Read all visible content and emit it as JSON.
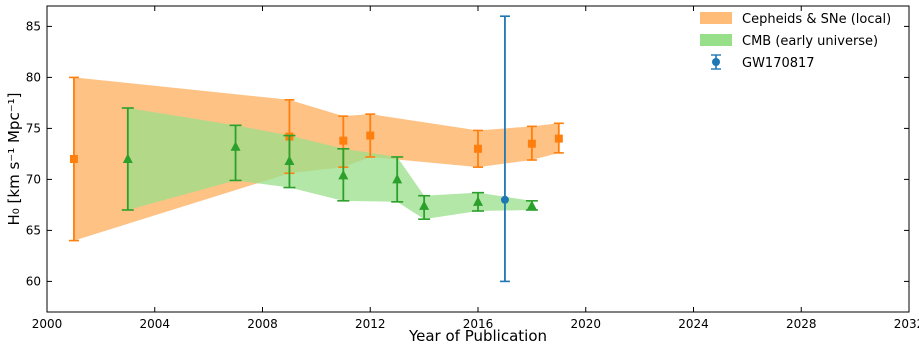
{
  "chart_data": {
    "type": "scatter",
    "xlabel": "Year of Publication",
    "ylabel": "H₀ [km s⁻¹ Mpc⁻¹]",
    "xlim": [
      2000,
      2032
    ],
    "ylim": [
      57,
      87
    ],
    "xticks": [
      2000,
      2004,
      2008,
      2012,
      2016,
      2020,
      2024,
      2028,
      2032
    ],
    "yticks": [
      60,
      65,
      70,
      75,
      80,
      85
    ],
    "legend_position": "top-right",
    "grid": false,
    "bands": [
      {
        "name": "Cepheids & SNe (local)",
        "color": "#ffbb78",
        "x": [
          2001,
          2009,
          2011,
          2012,
          2016,
          2018,
          2019
        ],
        "upper": [
          80.0,
          77.8,
          76.2,
          76.4,
          74.8,
          75.2,
          75.5
        ],
        "lower": [
          64.0,
          70.6,
          71.2,
          72.2,
          71.2,
          71.9,
          72.6
        ]
      },
      {
        "name": "CMB (early universe)",
        "color": "#98df8a",
        "x": [
          2003,
          2007,
          2009,
          2011,
          2013,
          2014,
          2016,
          2018
        ],
        "upper": [
          77.0,
          75.3,
          74.3,
          73.0,
          72.2,
          68.4,
          68.7,
          67.9
        ],
        "lower": [
          67.0,
          69.9,
          69.2,
          67.9,
          67.8,
          66.1,
          66.9,
          67.0
        ]
      }
    ],
    "series": [
      {
        "name": "Cepheids & SNe (local)",
        "color": "#ff7f0e",
        "marker": "square",
        "x": [
          2001,
          2009,
          2011,
          2012,
          2016,
          2018,
          2019
        ],
        "y": [
          72.0,
          74.2,
          73.8,
          74.3,
          73.0,
          73.5,
          74.0
        ],
        "yerr_low": [
          64.0,
          70.6,
          71.2,
          72.2,
          71.2,
          71.9,
          72.6
        ],
        "yerr_high": [
          80.0,
          77.8,
          76.2,
          76.4,
          74.8,
          75.2,
          75.5
        ]
      },
      {
        "name": "CMB (early universe)",
        "color": "#2ca02c",
        "marker": "triangle",
        "x": [
          2003,
          2007,
          2009,
          2011,
          2013,
          2014,
          2016,
          2018
        ],
        "y": [
          72.0,
          73.2,
          71.8,
          70.4,
          70.0,
          67.4,
          67.8,
          67.4
        ],
        "yerr_low": [
          67.0,
          69.9,
          69.2,
          67.9,
          67.8,
          66.1,
          66.9,
          67.0
        ],
        "yerr_high": [
          77.0,
          75.3,
          74.3,
          73.0,
          72.2,
          68.4,
          68.7,
          67.9
        ]
      },
      {
        "name": "GW170817",
        "color": "#1f77b4",
        "marker": "circle",
        "x": [
          2017
        ],
        "y": [
          68.0
        ],
        "yerr_low": [
          60.0
        ],
        "yerr_high": [
          86.0
        ]
      }
    ],
    "legend": [
      {
        "label": "Cepheids & SNe (local)",
        "kind": "patch",
        "color": "#ffbb78"
      },
      {
        "label": "CMB (early universe)",
        "kind": "patch",
        "color": "#98df8a"
      },
      {
        "label": "GW170817",
        "kind": "errorbar",
        "color": "#1f77b4"
      }
    ]
  }
}
